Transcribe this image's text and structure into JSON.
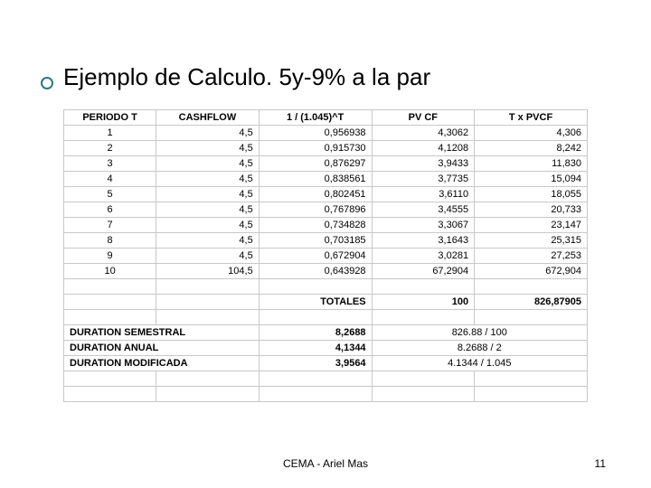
{
  "title": "Ejemplo de Calculo. 5y-9% a la par",
  "columns": [
    "PERIODO T",
    "CASHFLOW",
    "1 / (1.045)^T",
    "PV CF",
    "T x PVCF"
  ],
  "rows": [
    [
      "1",
      "4,5",
      "0,956938",
      "4,3062",
      "4,306"
    ],
    [
      "2",
      "4,5",
      "0,915730",
      "4,1208",
      "8,242"
    ],
    [
      "3",
      "4,5",
      "0,876297",
      "3,9433",
      "11,830"
    ],
    [
      "4",
      "4,5",
      "0,838561",
      "3,7735",
      "15,094"
    ],
    [
      "5",
      "4,5",
      "0,802451",
      "3,6110",
      "18,055"
    ],
    [
      "6",
      "4,5",
      "0,767896",
      "3,4555",
      "20,733"
    ],
    [
      "7",
      "4,5",
      "0,734828",
      "3,3067",
      "23,147"
    ],
    [
      "8",
      "4,5",
      "0,703185",
      "3,1643",
      "25,315"
    ],
    [
      "9",
      "4,5",
      "0,672904",
      "3,0281",
      "27,253"
    ],
    [
      "10",
      "104,5",
      "0,643928",
      "67,2904",
      "672,904"
    ]
  ],
  "totals_label": "TOTALES",
  "totals_pv": "100",
  "totals_txpv": "826,87905",
  "summary": [
    {
      "label": "DURATION SEMESTRAL",
      "val": "8,2688",
      "calc": "826.88 / 100"
    },
    {
      "label": "DURATION ANUAL",
      "val": "4,1344",
      "calc": "8.2688 / 2"
    },
    {
      "label": "DURATION MODIFICADA",
      "val": "3,9564",
      "calc": "4.1344 / 1.045"
    }
  ],
  "footer": "CEMA  - Ariel Mas",
  "page": "11"
}
